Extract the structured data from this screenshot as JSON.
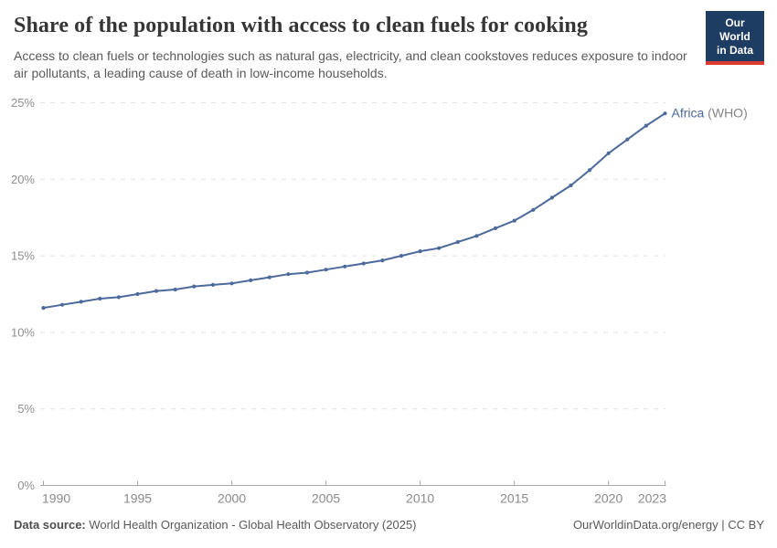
{
  "header": {
    "title": "Share of the population with access to clean fuels for cooking",
    "subtitle": "Access to clean fuels or technologies such as natural gas, electricity, and clean cookstoves reduces exposure to indoor air pollutants, a leading cause of death in low-income households.",
    "logo": {
      "line1": "Our World",
      "line2": "in Data",
      "bg_color": "#1d3d63",
      "accent_color": "#dc3a33"
    }
  },
  "chart_data": {
    "type": "line",
    "title": "Share of the population with access to clean fuels for cooking",
    "xlabel": "",
    "ylabel": "",
    "x": [
      1990,
      1991,
      1992,
      1993,
      1994,
      1995,
      1996,
      1997,
      1998,
      1999,
      2000,
      2001,
      2002,
      2003,
      2004,
      2005,
      2006,
      2007,
      2008,
      2009,
      2010,
      2011,
      2012,
      2013,
      2014,
      2015,
      2016,
      2017,
      2018,
      2019,
      2020,
      2021,
      2022,
      2023
    ],
    "series": [
      {
        "name": "Africa",
        "source_suffix": "(WHO)",
        "color": "#4c6a9c",
        "values": [
          11.6,
          11.8,
          12.0,
          12.2,
          12.3,
          12.5,
          12.7,
          12.8,
          13.0,
          13.1,
          13.2,
          13.4,
          13.6,
          13.8,
          13.9,
          14.1,
          14.3,
          14.5,
          14.7,
          15.0,
          15.3,
          15.5,
          15.9,
          16.3,
          16.8,
          17.3,
          18.0,
          18.8,
          19.6,
          20.6,
          21.7,
          22.6,
          23.5,
          24.3
        ]
      }
    ],
    "x_ticks": [
      1990,
      1995,
      2000,
      2005,
      2010,
      2015,
      2020,
      2023
    ],
    "y_ticks": [
      0,
      5,
      10,
      15,
      20,
      25
    ],
    "y_tick_suffix": "%",
    "xlim": [
      1990,
      2023
    ],
    "ylim": [
      0,
      25
    ],
    "grid": "horizontal-dashed",
    "legend_position": "line-end-label",
    "colors": {
      "line": "#4c6a9c",
      "gridline": "#e2e2e2",
      "axis": "#a8a8a8",
      "suffix_text": "#858585"
    }
  },
  "footer": {
    "source_label": "Data source:",
    "source_text": " World Health Organization - Global Health Observatory (2025)",
    "right_text": "OurWorldinData.org/energy | CC BY"
  }
}
